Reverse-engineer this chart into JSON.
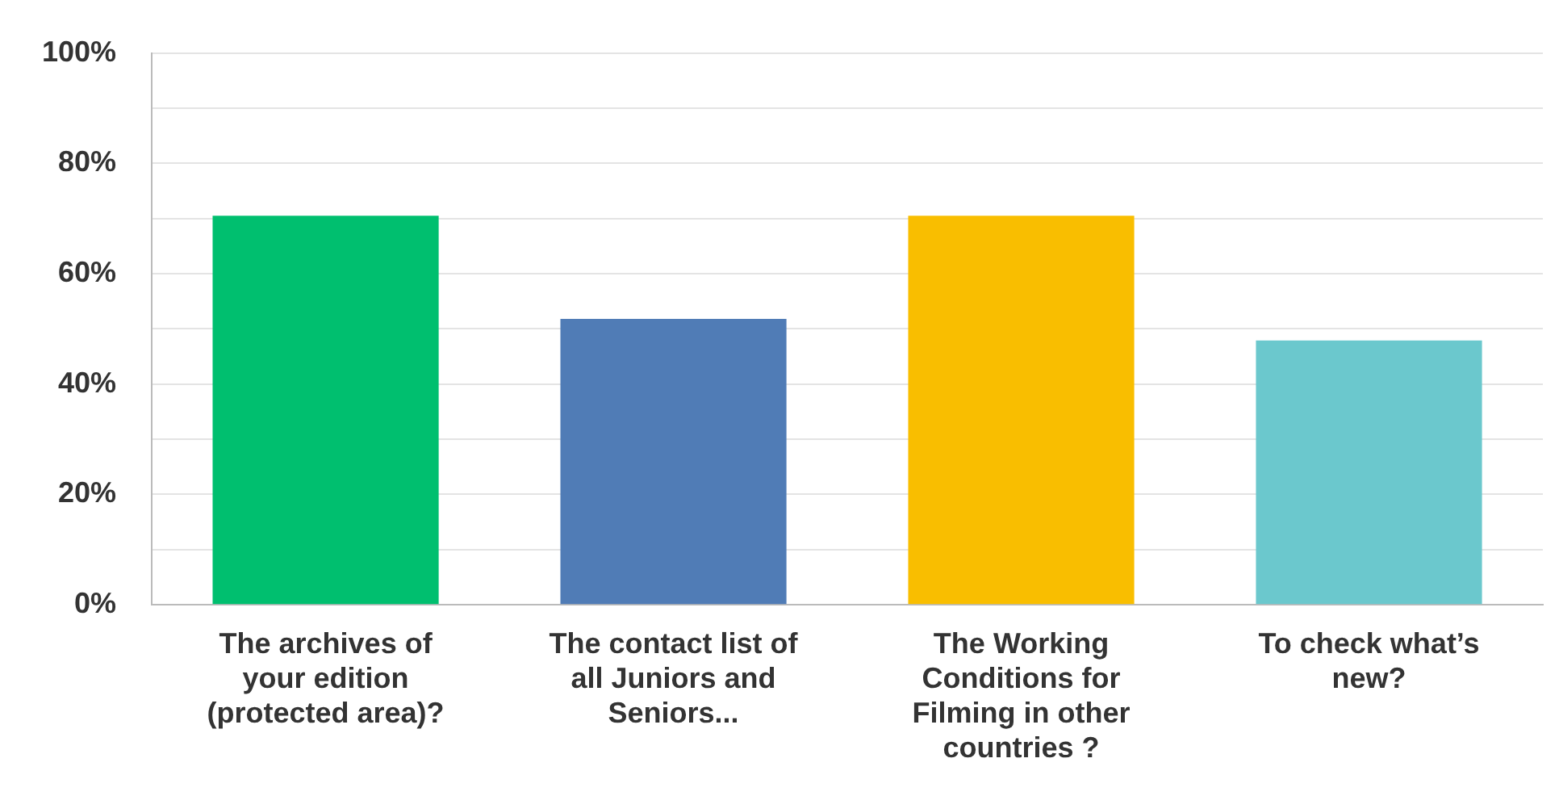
{
  "chart_data": {
    "type": "bar",
    "categories": [
      "The archives of your edition (protected area)?",
      "The contact list of all Juniors and Seniors...",
      "The Working Conditions for Filming in other countries ?",
      "To check what’s new?"
    ],
    "values": [
      70.5,
      51.8,
      70.5,
      47.9
    ],
    "colors": [
      "#00bf6f",
      "#507cb6",
      "#f9be00",
      "#6bc8cd"
    ],
    "ylim": [
      0,
      100
    ],
    "yticks": [
      {
        "value": 0,
        "label": "0%"
      },
      {
        "value": 10,
        "label": null
      },
      {
        "value": 20,
        "label": "20%"
      },
      {
        "value": 30,
        "label": null
      },
      {
        "value": 40,
        "label": "40%"
      },
      {
        "value": 50,
        "label": null
      },
      {
        "value": 60,
        "label": "60%"
      },
      {
        "value": 70,
        "label": null
      },
      {
        "value": 80,
        "label": "80%"
      },
      {
        "value": 90,
        "label": null
      },
      {
        "value": 100,
        "label": "100%"
      }
    ],
    "grid": "y",
    "legend": false
  }
}
